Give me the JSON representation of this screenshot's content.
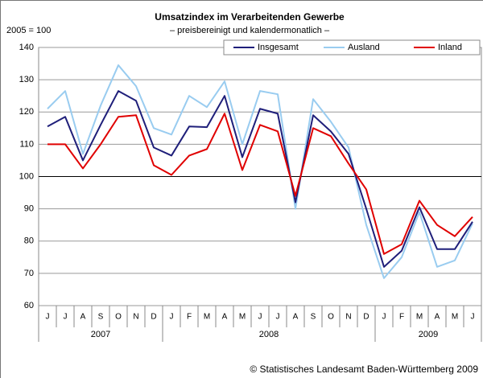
{
  "chart_data": {
    "type": "line",
    "title": "Umsatzindex im Verarbeitenden Gewerbe",
    "subtitle": "– preisbereinigt und kalendermonatlich –",
    "y_label": "2005 = 100",
    "source": "© Statistisches Landesamt Baden-Württemberg 2009",
    "categories": [
      "J",
      "J",
      "A",
      "S",
      "O",
      "N",
      "D",
      "J",
      "F",
      "M",
      "A",
      "M",
      "J",
      "J",
      "A",
      "S",
      "O",
      "N",
      "D",
      "J",
      "F",
      "M",
      "A",
      "M",
      "J"
    ],
    "years": [
      "2007",
      "2008",
      "2009"
    ],
    "series": [
      {
        "name": "Insgesamt",
        "color": "#1f1f7a",
        "values": [
          115.5,
          118.5,
          105,
          116,
          126.5,
          123.5,
          109,
          106.5,
          115.5,
          115.3,
          125,
          106,
          121,
          119.5,
          92,
          119,
          114,
          107,
          90,
          72,
          77,
          90.5,
          77.5,
          77.5,
          86
        ]
      },
      {
        "name": "Ausland",
        "color": "#99ccf0",
        "values": [
          121,
          126.5,
          107,
          122,
          134.5,
          128,
          115,
          113,
          125,
          121.5,
          129.5,
          110,
          126.5,
          125.5,
          90,
          124,
          117,
          109,
          85,
          68.5,
          75,
          89,
          72,
          74,
          85.5
        ]
      },
      {
        "name": "Inland",
        "color": "#e00000",
        "values": [
          110,
          110,
          102.5,
          110,
          118.5,
          119,
          103.5,
          100.5,
          106.5,
          108.5,
          119.5,
          102,
          116,
          114,
          94,
          115,
          112.5,
          104,
          96,
          76,
          79,
          92.5,
          85,
          81.5,
          87.5
        ]
      }
    ],
    "ylim": [
      60,
      140
    ],
    "yticks": [
      60,
      70,
      80,
      90,
      100,
      110,
      120,
      130,
      140
    ],
    "grid": true,
    "reference_line": 100,
    "legend": "top-right"
  }
}
